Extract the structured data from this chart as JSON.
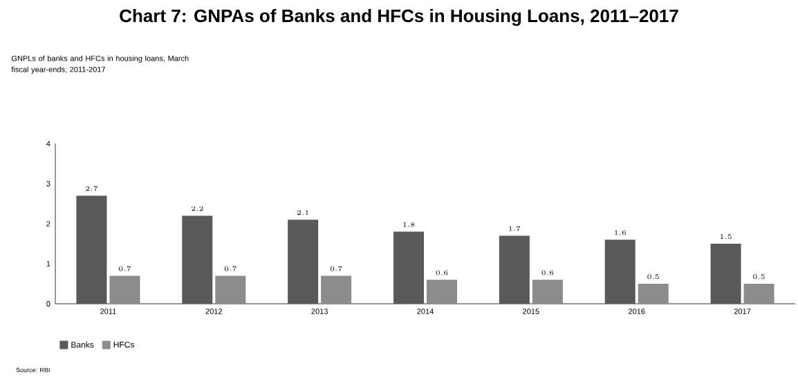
{
  "chart_data": {
    "type": "bar",
    "title": "Chart 7: GNPAs of Banks and HFCs in Housing Loans, 2011–2017",
    "subtitle": "GNPLs of banks and HFCs in housing loans, March fiscal year-ends, 2011-2017",
    "categories": [
      "2011",
      "2012",
      "2013",
      "2014",
      "2015",
      "2016",
      "2017"
    ],
    "series": [
      {
        "name": "Banks",
        "color": "#595959",
        "values": [
          2.7,
          2.2,
          2.1,
          1.8,
          1.7,
          1.6,
          1.5
        ]
      },
      {
        "name": "HFCs",
        "color": "#8c8c8c",
        "values": [
          0.7,
          0.7,
          0.7,
          0.6,
          0.6,
          0.5,
          0.5
        ]
      }
    ],
    "ylim": [
      0,
      4
    ],
    "yticks": [
      0,
      1,
      2,
      3,
      4
    ],
    "data_labels": true,
    "legend": "bottom left",
    "grid": false,
    "annotations": [
      "Source: RBI"
    ]
  }
}
